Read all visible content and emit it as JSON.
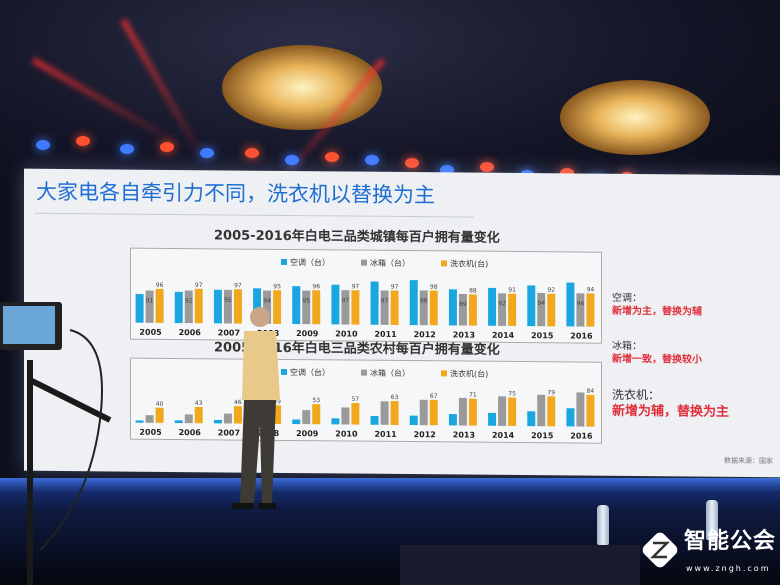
{
  "slide": {
    "title": "大家电各自牵引力不同，洗衣机以替换为主",
    "notes": [
      {
        "heading": "空调：",
        "text": "新增为主，替换为辅"
      },
      {
        "heading": "冰箱：",
        "text": "新增一致，替换较小"
      },
      {
        "heading": "洗衣机：",
        "text": "新增为辅，替换为主"
      }
    ],
    "source": "数据来源：国家"
  },
  "chart_data": [
    {
      "type": "bar",
      "title": "2005-2016年白电三品类城镇每百户拥有量变化",
      "categories": [
        "2005",
        "2006",
        "2007",
        "2008",
        "2009",
        "2010",
        "2011",
        "2012",
        "2013",
        "2014",
        "2015",
        "2016"
      ],
      "legend_placement": "top",
      "series": [
        {
          "name": "空调（台）",
          "color": "#1aa7e0",
          "values": [
            81,
            88,
            95,
            100,
            107,
            112,
            122,
            127,
            102,
            107,
            115,
            124
          ],
          "labeled": false
        },
        {
          "name": "冰箱（台）",
          "color": "#9a9a9a",
          "values": [
            91,
            92,
            95,
            94,
            95,
            97,
            97,
            98,
            89,
            92,
            94,
            94
          ],
          "labeled": true
        },
        {
          "name": "洗衣机(台)",
          "color": "#f2a81d",
          "values": [
            96,
            97,
            97,
            95,
            96,
            97,
            97,
            98,
            88,
            91,
            92,
            94
          ],
          "labeled": true
        }
      ]
    },
    {
      "type": "bar",
      "title": "2005-2016年白电三品类农村每百户拥有量变化",
      "categories": [
        "2005",
        "2006",
        "2007",
        "2008",
        "2009",
        "2010",
        "2011",
        "2012",
        "2013",
        "2014",
        "2015",
        "2016"
      ],
      "legend_placement": "top",
      "series": [
        {
          "name": "空调（台）",
          "color": "#1aa7e0",
          "values": [
            6,
            7,
            9,
            10,
            12,
            16,
            23,
            25,
            30,
            34,
            39,
            48
          ],
          "labeled": false
        },
        {
          "name": "冰箱（台）",
          "color": "#9a9a9a",
          "values": [
            20,
            23,
            26,
            30,
            37,
            45,
            62,
            67,
            73,
            78,
            83,
            90
          ],
          "labeled": false
        },
        {
          "name": "洗衣机(台)",
          "color": "#f2a81d",
          "values": [
            40,
            43,
            46,
            49,
            53,
            57,
            63,
            67,
            71,
            75,
            79,
            84
          ],
          "labeled": true
        }
      ]
    }
  ],
  "watermark": {
    "name": "智能公会",
    "url": "www.zngh.com",
    "icon": "circuit-z-logo-icon"
  }
}
